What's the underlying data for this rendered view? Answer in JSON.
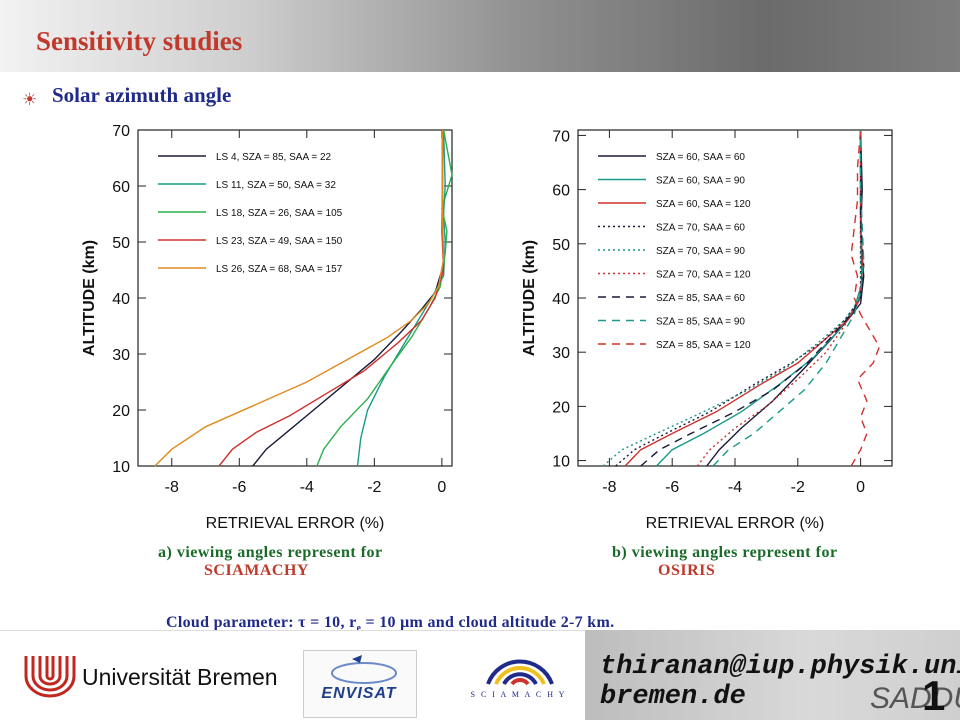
{
  "header": {
    "title": "Sensitivity studies"
  },
  "section": {
    "bullet_icon": "sun-icon",
    "subtitle": "Solar azimuth angle"
  },
  "charts": [
    {
      "type": "line",
      "xlabel": "RETRIEVAL ERROR (%)",
      "ylabel": "ALTITUDE (km)",
      "xlim": [
        -9,
        0.3
      ],
      "ylim": [
        10,
        70
      ],
      "xticks": [
        "-8",
        "-6",
        "-4",
        "-2",
        "0"
      ],
      "yticks": [
        "10",
        "20",
        "30",
        "40",
        "50",
        "60",
        "70"
      ],
      "legend_position": "top-left",
      "series": [
        {
          "name": "LS 4, SZA = 85, SAA = 22",
          "color": "#1a1a3a",
          "dash": "solid",
          "points": [
            [
              -5.6,
              10
            ],
            [
              -5.2,
              13
            ],
            [
              -4.6,
              16
            ],
            [
              -3.8,
              20
            ],
            [
              -3.0,
              24
            ],
            [
              -2.0,
              29
            ],
            [
              -1.2,
              34
            ],
            [
              -0.6,
              38
            ],
            [
              -0.2,
              41
            ],
            [
              0.05,
              46
            ],
            [
              0.02,
              52
            ],
            [
              0.02,
              60
            ],
            [
              0.02,
              70
            ]
          ]
        },
        {
          "name": "LS 11, SZA = 50, SAA = 32",
          "color": "#1a9a8a",
          "dash": "solid",
          "points": [
            [
              -2.5,
              10
            ],
            [
              -2.4,
              15
            ],
            [
              -2.2,
              20
            ],
            [
              -1.7,
              26
            ],
            [
              -1.2,
              31
            ],
            [
              -0.7,
              36
            ],
            [
              -0.3,
              40
            ],
            [
              0.05,
              44
            ],
            [
              0.1,
              50
            ],
            [
              0.05,
              55
            ],
            [
              0.1,
              60
            ],
            [
              0.05,
              70
            ]
          ]
        },
        {
          "name": "LS 18, SZA = 26, SAA = 105",
          "color": "#2ab04a",
          "dash": "solid",
          "points": [
            [
              -3.7,
              10
            ],
            [
              -3.5,
              13
            ],
            [
              -3.0,
              17
            ],
            [
              -2.2,
              22
            ],
            [
              -1.5,
              28
            ],
            [
              -0.9,
              33
            ],
            [
              -0.4,
              38
            ],
            [
              -0.05,
              42
            ],
            [
              0.1,
              48
            ],
            [
              0.15,
              52
            ],
            [
              0.0,
              56
            ],
            [
              0.3,
              62
            ],
            [
              0.05,
              70
            ]
          ]
        },
        {
          "name": "LS 23, SZA = 49, SAA = 150",
          "color": "#d0312d",
          "dash": "solid",
          "points": [
            [
              -6.6,
              10
            ],
            [
              -6.2,
              13
            ],
            [
              -5.5,
              16
            ],
            [
              -4.5,
              19
            ],
            [
              -3.4,
              23
            ],
            [
              -2.3,
              27
            ],
            [
              -1.3,
              32
            ],
            [
              -0.6,
              36
            ],
            [
              -0.2,
              40
            ],
            [
              0.05,
              45
            ],
            [
              0.0,
              52
            ],
            [
              0.02,
              60
            ],
            [
              0.02,
              70
            ]
          ]
        },
        {
          "name": "LS 26, SZA = 68, SAA = 157",
          "color": "#e08a20",
          "dash": "solid",
          "points": [
            [
              -8.5,
              10
            ],
            [
              -8.0,
              13
            ],
            [
              -7.0,
              17
            ],
            [
              -5.5,
              21
            ],
            [
              -4.0,
              25
            ],
            [
              -2.8,
              29
            ],
            [
              -1.6,
              33
            ],
            [
              -0.9,
              36
            ],
            [
              -0.4,
              39
            ],
            [
              -0.1,
              42
            ],
            [
              0.05,
              47
            ],
            [
              0.02,
              55
            ],
            [
              0.02,
              70
            ]
          ]
        }
      ]
    },
    {
      "type": "line",
      "xlabel": "RETRIEVAL ERROR (%)",
      "ylabel": "ALTITUDE (km)",
      "xlim": [
        -9,
        1
      ],
      "ylim": [
        9,
        71
      ],
      "xticks": [
        "-8",
        "-6",
        "-4",
        "-2",
        "0"
      ],
      "yticks": [
        "10",
        "20",
        "30",
        "40",
        "50",
        "60",
        "70"
      ],
      "legend_position": "top-left",
      "series": [
        {
          "name": "SZA = 60, SAA = 60",
          "color": "#1a1a3a",
          "dash": "solid",
          "points": [
            [
              -4.9,
              9
            ],
            [
              -4.5,
              12
            ],
            [
              -3.8,
              16
            ],
            [
              -2.8,
              21
            ],
            [
              -1.8,
              27
            ],
            [
              -1.0,
              32
            ],
            [
              -0.4,
              36
            ],
            [
              0.0,
              39
            ],
            [
              0.1,
              44
            ],
            [
              0.0,
              52
            ],
            [
              0.05,
              60
            ],
            [
              0.0,
              71
            ]
          ]
        },
        {
          "name": "SZA = 60, SAA = 90",
          "color": "#1a9a8a",
          "dash": "solid",
          "points": [
            [
              -6.5,
              9
            ],
            [
              -6.0,
              12
            ],
            [
              -5.0,
              15
            ],
            [
              -3.8,
              19
            ],
            [
              -2.6,
              24
            ],
            [
              -1.5,
              29
            ],
            [
              -0.7,
              34
            ],
            [
              -0.2,
              38
            ],
            [
              0.05,
              43
            ],
            [
              0.0,
              52
            ],
            [
              0.0,
              60
            ],
            [
              0.0,
              71
            ]
          ]
        },
        {
          "name": "SZA = 60, SAA = 120",
          "color": "#d0312d",
          "dash": "solid",
          "points": [
            [
              -7.5,
              9
            ],
            [
              -7.0,
              12
            ],
            [
              -6.0,
              15
            ],
            [
              -4.6,
              19
            ],
            [
              -3.2,
              24
            ],
            [
              -2.0,
              28
            ],
            [
              -1.0,
              33
            ],
            [
              -0.4,
              36
            ],
            [
              0.0,
              40
            ],
            [
              0.05,
              46
            ],
            [
              0.0,
              55
            ],
            [
              0.0,
              71
            ]
          ]
        },
        {
          "name": "SZA = 70, SAA = 60",
          "color": "#1a1a3a",
          "dash": "dotted",
          "points": [
            [
              -7.8,
              9
            ],
            [
              -7.2,
              12
            ],
            [
              -6.2,
              15
            ],
            [
              -4.8,
              19
            ],
            [
              -3.4,
              24
            ],
            [
              -2.2,
              28
            ],
            [
              -1.2,
              32
            ],
            [
              -0.5,
              36
            ],
            [
              0.0,
              40
            ],
            [
              0.0,
              50
            ],
            [
              0.0,
              71
            ]
          ]
        },
        {
          "name": "SZA = 70, SAA = 90",
          "color": "#1a9a8a",
          "dash": "dotted",
          "points": [
            [
              -8.2,
              9
            ],
            [
              -7.6,
              12
            ],
            [
              -6.5,
              15
            ],
            [
              -5.0,
              19
            ],
            [
              -3.6,
              23
            ],
            [
              -2.4,
              27
            ],
            [
              -1.3,
              32
            ],
            [
              -0.5,
              36
            ],
            [
              0.0,
              40
            ],
            [
              0.0,
              50
            ],
            [
              0.0,
              71
            ]
          ]
        },
        {
          "name": "SZA = 70, SAA = 120",
          "color": "#d0312d",
          "dash": "dotted",
          "points": [
            [
              -5.2,
              9
            ],
            [
              -4.8,
              12
            ],
            [
              -4.0,
              16
            ],
            [
              -3.0,
              20
            ],
            [
              -2.0,
              25
            ],
            [
              -1.1,
              30
            ],
            [
              -0.5,
              35
            ],
            [
              -0.1,
              39
            ],
            [
              0.05,
              44
            ],
            [
              0.0,
              52
            ],
            [
              0.0,
              71
            ]
          ]
        },
        {
          "name": "SZA = 85, SAA = 60",
          "color": "#1a1a3a",
          "dash": "dashed",
          "points": [
            [
              -7.0,
              9
            ],
            [
              -6.4,
              12
            ],
            [
              -5.4,
              15
            ],
            [
              -4.0,
              19
            ],
            [
              -2.8,
              23
            ],
            [
              -1.7,
              28
            ],
            [
              -0.9,
              33
            ],
            [
              -0.3,
              37
            ],
            [
              0.0,
              40
            ],
            [
              0.1,
              46
            ],
            [
              0.0,
              55
            ],
            [
              0.0,
              71
            ]
          ]
        },
        {
          "name": "SZA = 85, SAA = 90",
          "color": "#1a9a8a",
          "dash": "dashed",
          "points": [
            [
              -4.7,
              9
            ],
            [
              -4.2,
              12
            ],
            [
              -3.4,
              15
            ],
            [
              -2.6,
              19
            ],
            [
              -1.8,
              23
            ],
            [
              -1.1,
              28
            ],
            [
              -0.6,
              33
            ],
            [
              -0.2,
              37
            ],
            [
              0.0,
              41
            ],
            [
              0.1,
              47
            ],
            [
              0.0,
              60
            ],
            [
              0.0,
              71
            ]
          ]
        },
        {
          "name": "SZA = 85, SAA = 120",
          "color": "#d0312d",
          "dash": "dashed",
          "points": [
            [
              -0.3,
              9
            ],
            [
              0.0,
              12
            ],
            [
              0.2,
              15
            ],
            [
              0.0,
              18
            ],
            [
              0.2,
              21
            ],
            [
              -0.1,
              25
            ],
            [
              0.4,
              28
            ],
            [
              0.6,
              31
            ],
            [
              0.3,
              34
            ],
            [
              0.0,
              37
            ],
            [
              -0.2,
              40
            ],
            [
              -0.1,
              44
            ],
            [
              -0.3,
              48
            ],
            [
              -0.2,
              53
            ],
            [
              -0.1,
              58
            ],
            [
              -0.1,
              64
            ],
            [
              0.0,
              71
            ]
          ]
        }
      ]
    }
  ],
  "captions": [
    {
      "line1": "a) viewing angles represent for",
      "instrument": "SCIAMACHY"
    },
    {
      "line1": "b) viewing angles represent for",
      "instrument": "OSIRIS"
    }
  ],
  "cloud": {
    "text": "Cloud parameter:   τ = 10, r",
    "sub": "e",
    "text2": " = 10 μm and cloud altitude   2-7 km."
  },
  "footer": {
    "university": "Universität Bremen",
    "envisat": "ENVISAT",
    "sciamachy": "S C I A M A C H Y",
    "email_line1": "thiranan@iup.physik.uni-",
    "email_line2": "bremen.de",
    "sadd": "SADDU",
    "slide_number": "1"
  }
}
